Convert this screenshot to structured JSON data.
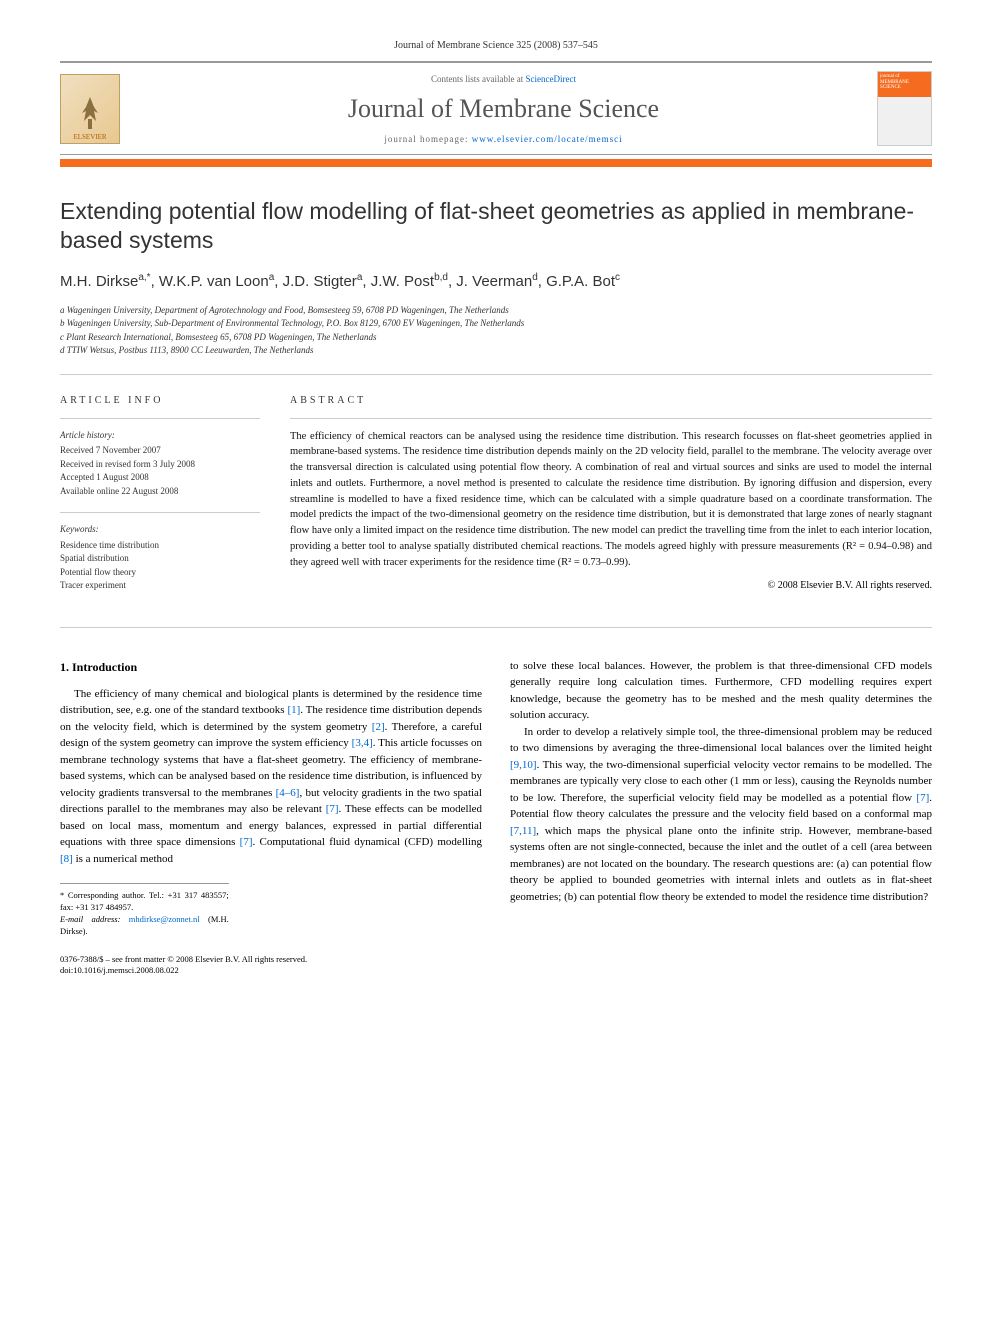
{
  "journal_ref": "Journal of Membrane Science 325 (2008) 537–545",
  "header": {
    "contents_prefix": "Contents lists available at ",
    "contents_link": "ScienceDirect",
    "journal_name": "Journal of Membrane Science",
    "homepage_prefix": "journal homepage: ",
    "homepage_url": "www.elsevier.com/locate/memsci",
    "elsevier_label": "ELSEVIER",
    "cover_text": "journal of MEMBRANE SCIENCE"
  },
  "article": {
    "title": "Extending potential flow modelling of flat-sheet geometries as applied in membrane-based systems",
    "authors_html": "M.H. Dirkse<sup>a,*</sup>, W.K.P. van Loon<sup>a</sup>, J.D. Stigter<sup>a</sup>, J.W. Post<sup>b,d</sup>, J. Veerman<sup>d</sup>, G.P.A. Bot<sup>c</sup>",
    "affiliations": [
      "a Wageningen University, Department of Agrotechnology and Food, Bomsesteeg 59, 6708 PD Wageningen, The Netherlands",
      "b Wageningen University, Sub-Department of Environmental Technology, P.O. Box 8129, 6700 EV Wageningen, The Netherlands",
      "c Plant Research International, Bomsesteeg 65, 6708 PD Wageningen, The Netherlands",
      "d TTIW Wetsus, Postbus 1113, 8900 CC Leeuwarden, The Netherlands"
    ]
  },
  "article_info": {
    "label": "ARTICLE INFO",
    "history_heading": "Article history:",
    "history": [
      "Received 7 November 2007",
      "Received in revised form 3 July 2008",
      "Accepted 1 August 2008",
      "Available online 22 August 2008"
    ],
    "keywords_heading": "Keywords:",
    "keywords": [
      "Residence time distribution",
      "Spatial distribution",
      "Potential flow theory",
      "Tracer experiment"
    ]
  },
  "abstract": {
    "label": "ABSTRACT",
    "text": "The efficiency of chemical reactors can be analysed using the residence time distribution. This research focusses on flat-sheet geometries applied in membrane-based systems. The residence time distribution depends mainly on the 2D velocity field, parallel to the membrane. The velocity average over the transversal direction is calculated using potential flow theory. A combination of real and virtual sources and sinks are used to model the internal inlets and outlets. Furthermore, a novel method is presented to calculate the residence time distribution. By ignoring diffusion and dispersion, every streamline is modelled to have a fixed residence time, which can be calculated with a simple quadrature based on a coordinate transformation. The model predicts the impact of the two-dimensional geometry on the residence time distribution, but it is demonstrated that large zones of nearly stagnant flow have only a limited impact on the residence time distribution. The new model can predict the travelling time from the inlet to each interior location, providing a better tool to analyse spatially distributed chemical reactions. The models agreed highly with pressure measurements (R² = 0.94–0.98) and they agreed well with tracer experiments for the residence time (R² = 0.73–0.99).",
    "copyright": "© 2008 Elsevier B.V. All rights reserved."
  },
  "body": {
    "section_heading": "1. Introduction",
    "col1_p1": "The efficiency of many chemical and biological plants is determined by the residence time distribution, see, e.g. one of the standard textbooks [1]. The residence time distribution depends on the velocity field, which is determined by the system geometry [2]. Therefore, a careful design of the system geometry can improve the system efficiency [3,4]. This article focusses on membrane technology systems that have a flat-sheet geometry. The efficiency of membrane-based systems, which can be analysed based on the residence time distribution, is influenced by velocity gradients transversal to the membranes [4–6], but velocity gradients in the two spatial directions parallel to the membranes may also be relevant [7]. These effects can be modelled based on local mass, momentum and energy balances, expressed in partial differential equations with three space dimensions [7]. Computational fluid dynamical (CFD) modelling [8] is a numerical method",
    "col2_p1": "to solve these local balances. However, the problem is that three-dimensional CFD models generally require long calculation times. Furthermore, CFD modelling requires expert knowledge, because the geometry has to be meshed and the mesh quality determines the solution accuracy.",
    "col2_p2": "In order to develop a relatively simple tool, the three-dimensional problem may be reduced to two dimensions by averaging the three-dimensional local balances over the limited height [9,10]. This way, the two-dimensional superficial velocity vector remains to be modelled. The membranes are typically very close to each other (1 mm or less), causing the Reynolds number to be low. Therefore, the superficial velocity field may be modelled as a potential flow [7]. Potential flow theory calculates the pressure and the velocity field based on a conformal map [7,11], which maps the physical plane onto the infinite strip. However, membrane-based systems often are not single-connected, because the inlet and the outlet of a cell (area between membranes) are not located on the boundary. The research questions are: (a) can potential flow theory be applied to bounded geometries with internal inlets and outlets as in flat-sheet geometries; (b) can potential flow theory be extended to model the residence time distribution?"
  },
  "footnote": {
    "corresponding": "* Corresponding author. Tel.: +31 317 483557; fax: +31 317 484957.",
    "email_label": "E-mail address: ",
    "email": "mhdirkse@zonnet.nl",
    "email_suffix": " (M.H. Dirkse)."
  },
  "footer": {
    "line1": "0376-7388/$ – see front matter © 2008 Elsevier B.V. All rights reserved.",
    "line2": "doi:10.1016/j.memsci.2008.08.022"
  },
  "colors": {
    "orange": "#f56b1f",
    "link": "#0066cc",
    "text": "#111111",
    "muted": "#666666",
    "border": "#cccccc"
  },
  "typography": {
    "body_fontsize_pt": 11,
    "abstract_fontsize_pt": 10.5,
    "title_fontsize_pt": 23,
    "authors_fontsize_pt": 15,
    "affil_fontsize_pt": 9,
    "info_fontsize_pt": 9
  }
}
